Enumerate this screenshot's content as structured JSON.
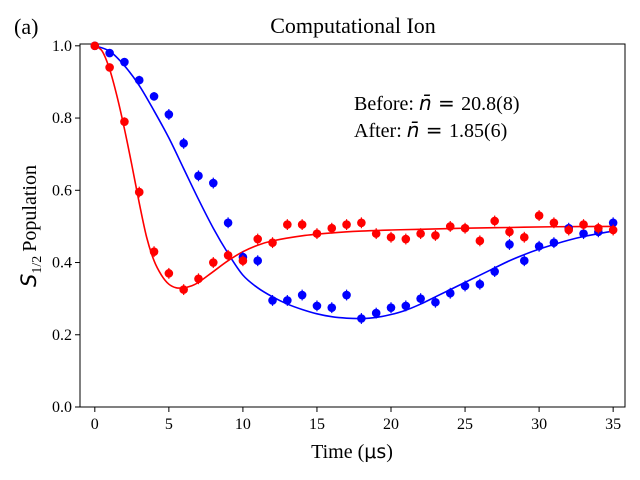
{
  "chart_data": {
    "type": "scatter",
    "panel_label": "(a)",
    "title": "Computational Ion",
    "xlabel_text": "Time (",
    "xlabel_unit": "μs",
    "xlabel_close": ")",
    "ylabel_symbol": "S",
    "ylabel_subscript": "1/2",
    "ylabel_text": "Population",
    "xlim": [
      -1,
      35.8
    ],
    "ylim": [
      0.0,
      1.005
    ],
    "xticks": [
      0,
      5,
      10,
      15,
      20,
      25,
      30,
      35
    ],
    "xtick_labels": [
      "0",
      "5",
      "10",
      "15",
      "20",
      "25",
      "30",
      "35"
    ],
    "yticks": [
      0.0,
      0.2,
      0.4,
      0.6,
      0.8,
      1.0
    ],
    "ytick_labels": [
      "0.0",
      "0.2",
      "0.4",
      "0.6",
      "0.8",
      "1.0"
    ],
    "annotations": [
      {
        "prefix": "Before: ",
        "symbol": "n̄",
        "eq": " = ",
        "value": "20.8(8)"
      },
      {
        "prefix": "After: ",
        "symbol": "n̄",
        "eq": " = ",
        "value": "1.85(6)"
      }
    ],
    "series": [
      {
        "name": "Before",
        "color": "#0000ff",
        "x": [
          0,
          1,
          2,
          3,
          4,
          5,
          6,
          7,
          8,
          9,
          10,
          11,
          12,
          13,
          14,
          15,
          16,
          17,
          18,
          19,
          20,
          21,
          22,
          23,
          24,
          25,
          26,
          27,
          28,
          29,
          30,
          31,
          32,
          33,
          34,
          35
        ],
        "y": [
          1.0,
          0.98,
          0.955,
          0.905,
          0.86,
          0.81,
          0.73,
          0.64,
          0.62,
          0.51,
          0.415,
          0.405,
          0.295,
          0.295,
          0.31,
          0.28,
          0.275,
          0.31,
          0.245,
          0.26,
          0.275,
          0.28,
          0.3,
          0.29,
          0.315,
          0.335,
          0.34,
          0.375,
          0.45,
          0.405,
          0.445,
          0.455,
          0.495,
          0.48,
          0.485,
          0.51
        ],
        "err": [
          0.008,
          0.01,
          0.01,
          0.012,
          0.012,
          0.015,
          0.015,
          0.015,
          0.015,
          0.015,
          0.015,
          0.015,
          0.015,
          0.015,
          0.015,
          0.015,
          0.015,
          0.015,
          0.015,
          0.015,
          0.015,
          0.015,
          0.015,
          0.015,
          0.015,
          0.015,
          0.015,
          0.015,
          0.015,
          0.015,
          0.015,
          0.015,
          0.015,
          0.015,
          0.015,
          0.015
        ],
        "fit_x": [
          0,
          1,
          2,
          3,
          4,
          5,
          6,
          7,
          8,
          9,
          10,
          11,
          12,
          13,
          14,
          15,
          16,
          17,
          18,
          19,
          20,
          21,
          22,
          23,
          24,
          25,
          26,
          27,
          28,
          29,
          30,
          31,
          32,
          33,
          34,
          35
        ],
        "fit_y": [
          1.0,
          0.985,
          0.945,
          0.89,
          0.82,
          0.745,
          0.66,
          0.575,
          0.495,
          0.425,
          0.365,
          0.33,
          0.305,
          0.285,
          0.27,
          0.258,
          0.25,
          0.246,
          0.245,
          0.248,
          0.256,
          0.268,
          0.285,
          0.305,
          0.325,
          0.345,
          0.365,
          0.385,
          0.405,
          0.422,
          0.437,
          0.45,
          0.462,
          0.472,
          0.48,
          0.487
        ]
      },
      {
        "name": "After",
        "color": "#ff0000",
        "x": [
          0,
          1,
          2,
          3,
          4,
          5,
          6,
          7,
          8,
          9,
          10,
          11,
          12,
          13,
          14,
          15,
          16,
          17,
          18,
          19,
          20,
          21,
          22,
          23,
          24,
          25,
          26,
          27,
          28,
          29,
          30,
          31,
          32,
          33,
          34,
          35
        ],
        "y": [
          1.0,
          0.94,
          0.79,
          0.595,
          0.43,
          0.37,
          0.325,
          0.355,
          0.4,
          0.42,
          0.405,
          0.465,
          0.455,
          0.505,
          0.505,
          0.48,
          0.495,
          0.505,
          0.51,
          0.48,
          0.47,
          0.465,
          0.48,
          0.475,
          0.5,
          0.495,
          0.46,
          0.515,
          0.485,
          0.47,
          0.53,
          0.51,
          0.49,
          0.505,
          0.495,
          0.49
        ],
        "err": [
          0.008,
          0.01,
          0.012,
          0.015,
          0.015,
          0.015,
          0.015,
          0.015,
          0.015,
          0.015,
          0.015,
          0.015,
          0.015,
          0.015,
          0.015,
          0.015,
          0.015,
          0.015,
          0.015,
          0.015,
          0.015,
          0.015,
          0.015,
          0.015,
          0.015,
          0.015,
          0.015,
          0.015,
          0.015,
          0.015,
          0.015,
          0.015,
          0.015,
          0.015,
          0.015,
          0.015
        ],
        "fit_x": [
          0,
          0.5,
          1,
          1.5,
          2,
          2.5,
          3,
          3.5,
          4,
          4.5,
          5,
          5.5,
          6,
          6.5,
          7,
          8,
          9,
          10,
          11,
          12,
          14,
          16,
          18,
          20,
          22,
          25,
          28,
          31,
          35
        ],
        "fit_y": [
          1.0,
          0.985,
          0.935,
          0.86,
          0.77,
          0.67,
          0.565,
          0.47,
          0.405,
          0.365,
          0.34,
          0.33,
          0.33,
          0.335,
          0.345,
          0.375,
          0.405,
          0.43,
          0.448,
          0.46,
          0.474,
          0.482,
          0.487,
          0.49,
          0.492,
          0.495,
          0.497,
          0.499,
          0.5
        ]
      }
    ]
  }
}
